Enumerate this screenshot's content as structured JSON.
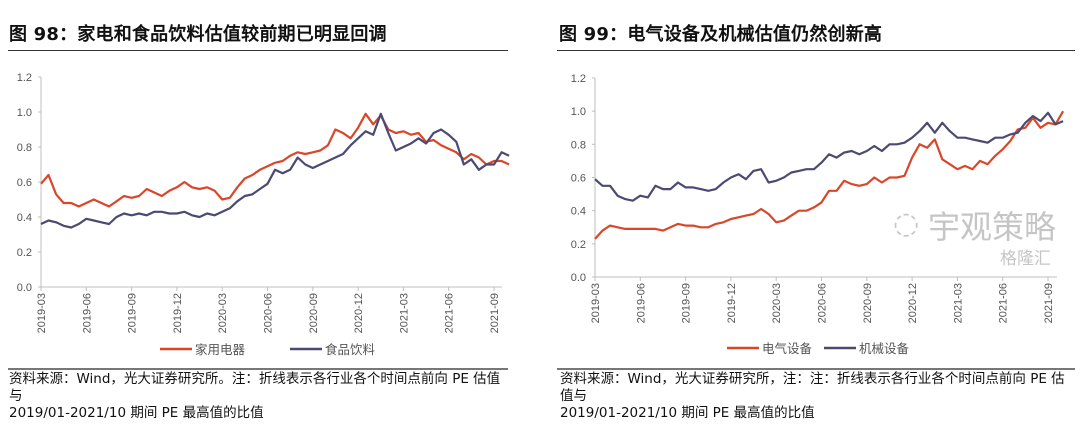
{
  "colors": {
    "orange": "#d9472b",
    "purple": "#4b4a72",
    "axis": "#bfbfbf",
    "tick_text": "#555555"
  },
  "left": {
    "title": "图 98：家电和食品饮料估值较前期已明显回调",
    "note_line1": "资料来源：Wind，光大证券研究所。注：折线表示各行业各个时间点前向 PE 估值与",
    "note_line2": "2019/01-2021/10 期间 PE 最高值的比值"
  },
  "right": {
    "title": "图 99：电气设备及机械估值仍然创新高",
    "note_line1": "资料来源：Wind，光大证券研究所，注：注：折线表示各行业各个时间点前向 PE 估值与",
    "note_line2": "2019/01-2021/10 期间 PE 最高值的比值"
  },
  "watermark": {
    "text1": "宇观策略",
    "text2": "格隆汇",
    "icon": "wechat-icon"
  },
  "chart_data": [
    {
      "type": "line",
      "title": "图 98：家电和食品饮料估值较前期已明显回调",
      "xlabel": "",
      "ylabel": "",
      "ylim": [
        0,
        1.2
      ],
      "yticks": [
        "0.0",
        "0.2",
        "0.4",
        "0.6",
        "0.8",
        "1.0",
        "1.2"
      ],
      "xticks": [
        "2019-03",
        "2019-06",
        "2019-09",
        "2019-12",
        "2020-03",
        "2020-06",
        "2020-09",
        "2020-12",
        "2021-03",
        "2021-06",
        "2021-09"
      ],
      "grid": false,
      "legend": "bottom",
      "series": [
        {
          "name": "家用电器",
          "color": "#d9472b",
          "values": [
            0.59,
            0.64,
            0.53,
            0.48,
            0.48,
            0.46,
            0.48,
            0.5,
            0.48,
            0.46,
            0.49,
            0.52,
            0.51,
            0.52,
            0.56,
            0.54,
            0.52,
            0.55,
            0.57,
            0.6,
            0.57,
            0.56,
            0.57,
            0.55,
            0.5,
            0.51,
            0.57,
            0.62,
            0.64,
            0.67,
            0.69,
            0.71,
            0.72,
            0.75,
            0.77,
            0.76,
            0.77,
            0.78,
            0.81,
            0.9,
            0.88,
            0.85,
            0.91,
            0.99,
            0.93,
            0.98,
            0.9,
            0.88,
            0.89,
            0.87,
            0.88,
            0.83,
            0.84,
            0.81,
            0.79,
            0.77,
            0.73,
            0.76,
            0.74,
            0.7,
            0.72,
            0.72,
            0.7
          ]
        },
        {
          "name": "食品饮料",
          "color": "#4b4a72",
          "values": [
            0.36,
            0.38,
            0.37,
            0.35,
            0.34,
            0.36,
            0.39,
            0.38,
            0.37,
            0.36,
            0.4,
            0.42,
            0.41,
            0.42,
            0.41,
            0.43,
            0.43,
            0.42,
            0.42,
            0.43,
            0.41,
            0.4,
            0.42,
            0.41,
            0.43,
            0.45,
            0.49,
            0.52,
            0.53,
            0.56,
            0.59,
            0.67,
            0.65,
            0.67,
            0.74,
            0.7,
            0.68,
            0.7,
            0.72,
            0.74,
            0.76,
            0.81,
            0.85,
            0.89,
            0.87,
            0.99,
            0.88,
            0.78,
            0.8,
            0.82,
            0.85,
            0.82,
            0.88,
            0.9,
            0.87,
            0.83,
            0.7,
            0.73,
            0.67,
            0.7,
            0.7,
            0.77,
            0.75
          ]
        }
      ]
    },
    {
      "type": "line",
      "title": "图 99：电气设备及机械估值仍然创新高",
      "xlabel": "",
      "ylabel": "",
      "ylim": [
        0,
        1.2
      ],
      "yticks": [
        "0.0",
        "0.2",
        "0.4",
        "0.6",
        "0.8",
        "1.0",
        "1.2"
      ],
      "xticks": [
        "2019-03",
        "2019-06",
        "2019-09",
        "2019-12",
        "2020-03",
        "2020-06",
        "2020-09",
        "2020-12",
        "2021-03",
        "2021-06",
        "2021-09"
      ],
      "grid": false,
      "legend": "bottom",
      "series": [
        {
          "name": "电气设备",
          "color": "#d9472b",
          "values": [
            0.23,
            0.28,
            0.31,
            0.3,
            0.29,
            0.29,
            0.29,
            0.29,
            0.29,
            0.28,
            0.3,
            0.32,
            0.31,
            0.31,
            0.3,
            0.3,
            0.32,
            0.33,
            0.35,
            0.36,
            0.37,
            0.38,
            0.41,
            0.38,
            0.33,
            0.34,
            0.37,
            0.4,
            0.4,
            0.42,
            0.45,
            0.52,
            0.52,
            0.58,
            0.56,
            0.55,
            0.56,
            0.6,
            0.57,
            0.6,
            0.6,
            0.61,
            0.72,
            0.8,
            0.78,
            0.83,
            0.71,
            0.68,
            0.65,
            0.67,
            0.65,
            0.7,
            0.68,
            0.73,
            0.77,
            0.82,
            0.89,
            0.9,
            0.96,
            0.9,
            0.93,
            0.92,
            1.0
          ]
        },
        {
          "name": "机械设备",
          "color": "#4b4a72",
          "values": [
            0.59,
            0.55,
            0.55,
            0.49,
            0.47,
            0.46,
            0.49,
            0.48,
            0.55,
            0.53,
            0.53,
            0.57,
            0.54,
            0.54,
            0.53,
            0.52,
            0.53,
            0.57,
            0.6,
            0.62,
            0.59,
            0.64,
            0.65,
            0.57,
            0.58,
            0.6,
            0.63,
            0.64,
            0.65,
            0.65,
            0.69,
            0.74,
            0.72,
            0.75,
            0.76,
            0.74,
            0.76,
            0.79,
            0.76,
            0.8,
            0.8,
            0.81,
            0.84,
            0.88,
            0.93,
            0.87,
            0.93,
            0.88,
            0.84,
            0.84,
            0.83,
            0.82,
            0.81,
            0.84,
            0.84,
            0.86,
            0.87,
            0.93,
            0.97,
            0.94,
            0.99,
            0.92,
            0.94
          ]
        }
      ]
    }
  ]
}
